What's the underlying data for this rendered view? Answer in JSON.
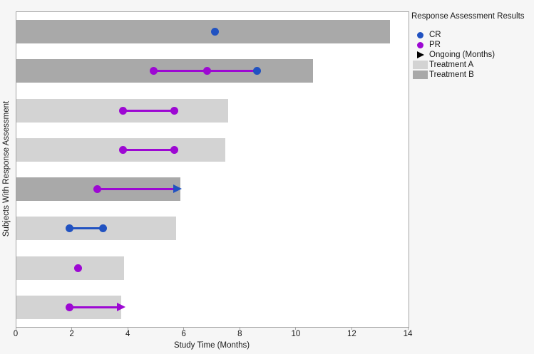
{
  "figure": {
    "background": "#f6f6f6",
    "plot_background": "#ffffff",
    "frame_color": "#a3a3a3",
    "text_color": "#1a1a1a"
  },
  "chart_data": {
    "type": "bar",
    "variant": "swimmer-plot",
    "orientation": "horizontal",
    "xlabel": "Study Time (Months)",
    "ylabel": "Subjects With Response Assessment",
    "xlim": [
      0,
      14
    ],
    "xticks": [
      0,
      2,
      4,
      6,
      8,
      10,
      12,
      14
    ],
    "grid": false,
    "colors": {
      "CR": "#2152c1",
      "PR": "#9d08d3",
      "treatment_a": "#d3d3d3",
      "treatment_b": "#a9a9a9"
    },
    "legend": {
      "title": "Response Assessment Results",
      "position": "top-right-outside",
      "entries": [
        {
          "label": "CR",
          "marker": "dot",
          "color": "#2152c1"
        },
        {
          "label": "PR",
          "marker": "dot",
          "color": "#9d08d3"
        },
        {
          "label": "Ongoing (Months)",
          "marker": "arrow-right",
          "color": "#000000"
        },
        {
          "label": "Treatment A",
          "marker": "swatch",
          "color": "#d3d3d3"
        },
        {
          "label": "Treatment B",
          "marker": "swatch",
          "color": "#a9a9a9"
        }
      ]
    },
    "subjects": [
      {
        "row": 1,
        "treatment": "B",
        "bar_months": 13.35,
        "events": [
          {
            "type": "CR",
            "month": 7.1
          }
        ],
        "segments": [],
        "ongoing": false
      },
      {
        "row": 2,
        "treatment": "B",
        "bar_months": 10.6,
        "events": [
          {
            "type": "PR",
            "month": 4.9
          },
          {
            "type": "PR",
            "month": 6.8
          },
          {
            "type": "CR",
            "month": 8.6
          }
        ],
        "segments": [
          {
            "from": 4.9,
            "to": 8.6,
            "color": "PR"
          }
        ],
        "ongoing": false
      },
      {
        "row": 3,
        "treatment": "A",
        "bar_months": 7.55,
        "events": [
          {
            "type": "PR",
            "month": 3.8
          },
          {
            "type": "PR",
            "month": 5.65
          }
        ],
        "segments": [
          {
            "from": 3.8,
            "to": 5.65,
            "color": "PR"
          }
        ],
        "ongoing": false
      },
      {
        "row": 4,
        "treatment": "A",
        "bar_months": 7.45,
        "events": [
          {
            "type": "PR",
            "month": 3.8
          },
          {
            "type": "PR",
            "month": 5.65
          }
        ],
        "segments": [
          {
            "from": 3.8,
            "to": 5.65,
            "color": "PR"
          }
        ],
        "ongoing": false
      },
      {
        "row": 5,
        "treatment": "B",
        "bar_months": 5.85,
        "events": [
          {
            "type": "PR",
            "month": 2.9
          }
        ],
        "segments": [
          {
            "from": 2.9,
            "to": 5.65,
            "color": "PR"
          }
        ],
        "ongoing": true,
        "arrow_month": 5.9,
        "arrow_color_ref": "CR"
      },
      {
        "row": 6,
        "treatment": "A",
        "bar_months": 5.7,
        "events": [
          {
            "type": "CR",
            "month": 1.9
          },
          {
            "type": "CR",
            "month": 3.1
          }
        ],
        "segments": [
          {
            "from": 1.9,
            "to": 3.1,
            "color": "CR"
          }
        ],
        "ongoing": false
      },
      {
        "row": 7,
        "treatment": "A",
        "bar_months": 3.85,
        "events": [
          {
            "type": "PR",
            "month": 2.2
          }
        ],
        "segments": [],
        "ongoing": false
      },
      {
        "row": 8,
        "treatment": "A",
        "bar_months": 3.75,
        "events": [
          {
            "type": "PR",
            "month": 1.9
          }
        ],
        "segments": [
          {
            "from": 1.9,
            "to": 3.6,
            "color": "PR"
          }
        ],
        "ongoing": true,
        "arrow_month": 3.9,
        "arrow_color_ref": "PR"
      }
    ]
  }
}
